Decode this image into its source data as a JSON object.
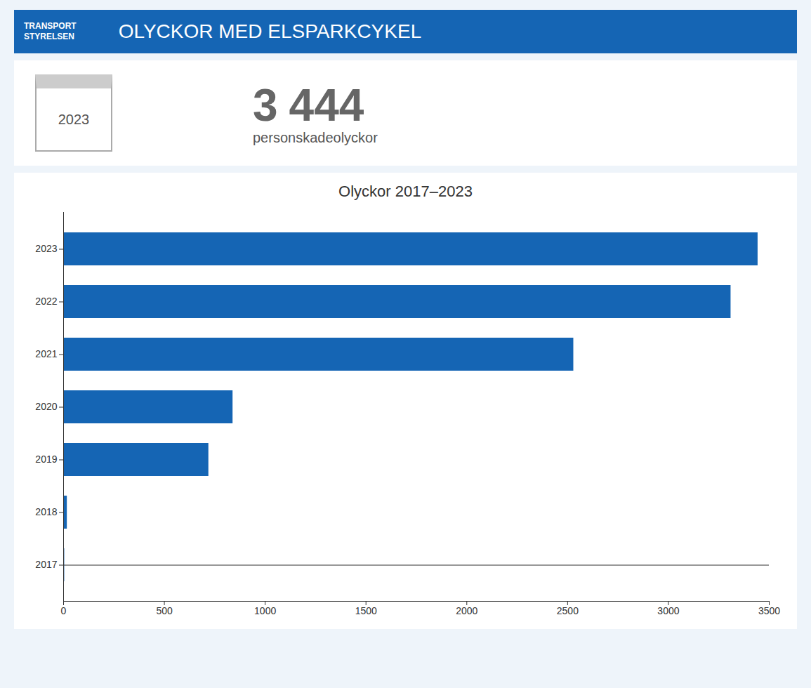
{
  "chart_data": {
    "type": "bar",
    "orientation": "horizontal",
    "title": "Olyckor 2017–2023",
    "categories": [
      "2017",
      "2018",
      "2019",
      "2020",
      "2021",
      "2022",
      "2023"
    ],
    "values": [
      5,
      18,
      720,
      840,
      2530,
      3310,
      3444
    ],
    "color": "#1565b4",
    "xlim": [
      0,
      3500
    ],
    "xticks": [
      0,
      500,
      1000,
      1500,
      2000,
      2500,
      3000,
      3500
    ],
    "grid": false,
    "annotations": [
      "TRANSPORT",
      "STYRELSEN",
      "OLYCKOR MED ELSPARKCYKEL",
      "2023",
      "3",
      "444",
      "personskadeolyckor"
    ]
  }
}
